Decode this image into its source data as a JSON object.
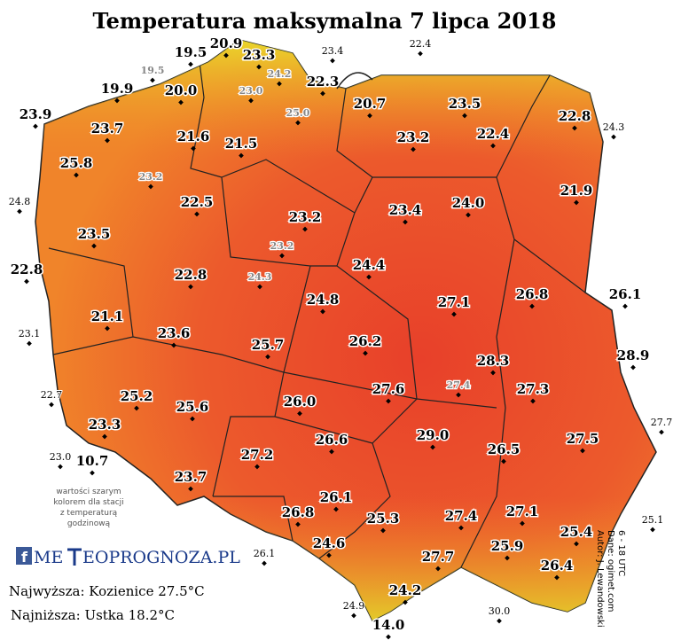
{
  "title": "Temperatura maksymalna 7 lipca 2018",
  "stations": [
    "19.5",
    "20.9",
    "23.3",
    "22.3",
    "20.0",
    "19.9",
    "20.7",
    "23.5",
    "22.8",
    "23.9",
    "23.7",
    "21.6",
    "21.5",
    "23.2",
    "22.4",
    "25.8",
    "21.9",
    "22.5",
    "23.2",
    "23.4",
    "24.0",
    "23.5",
    "22.8",
    "22.8",
    "24.4",
    "26.8",
    "26.1",
    "24.8",
    "27.1",
    "21.1",
    "23.6",
    "26.2",
    "25.7",
    "28.3",
    "28.9",
    "27.6",
    "27.3",
    "25.2",
    "26.0",
    "25.6",
    "23.3",
    "29.0",
    "27.5",
    "26.6",
    "10.7",
    "27.2",
    "26.5",
    "23.7",
    "26.1",
    "27.1",
    "26.8",
    "25.3",
    "27.4",
    "25.4",
    "25.9",
    "24.6",
    "27.7",
    "26.4",
    "24.2",
    "14.0"
  ],
  "gray_stations": [
    "19.5",
    "24.2",
    "23.0",
    "25.0",
    "23.2",
    "23.2",
    "24.3",
    "27.4"
  ],
  "small_stations": [
    "23.4",
    "22.4",
    "24.3",
    "24.8",
    "23.1",
    "22.7",
    "27.7",
    "23.0",
    "25.1",
    "26.1",
    "24.9",
    "30.0"
  ],
  "note": [
    "wartości szarym",
    "kolorem dla stacji",
    "z temperaturą",
    "godzinową"
  ],
  "logo": {
    "left": "ME",
    "right": "EOPROGNOZA.PL"
  },
  "highest": "Najwyższa: Kozienice 27.5°C",
  "lowest": "Najniższa: Ustka 18.2°C",
  "credits": [
    "Autor: J. Lewandowski",
    "Dane: ogimet.com",
    "6 - 18 UTC"
  ]
}
